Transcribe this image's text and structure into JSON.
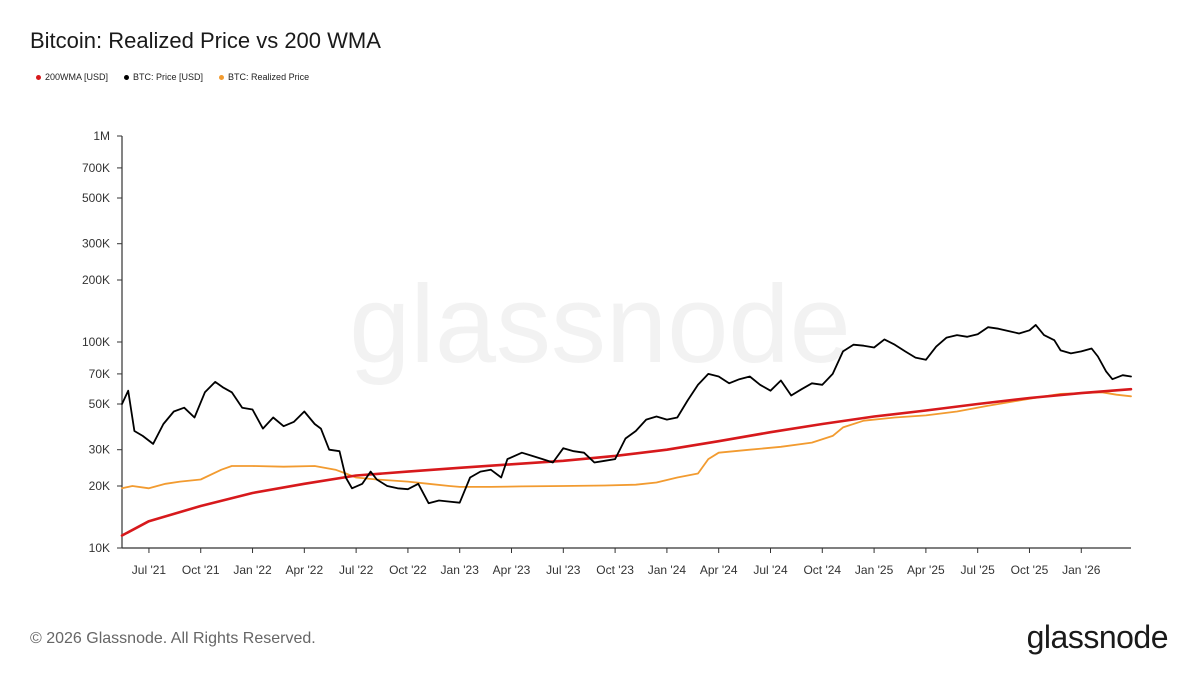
{
  "header": {
    "title": "Bitcoin: Realized Price vs 200 WMA"
  },
  "watermark": "glassnode",
  "footer": {
    "copyright": "© 2026 Glassnode. All Rights Reserved.",
    "brand": "glassnode"
  },
  "colors": {
    "wma": "#d7191c",
    "price": "#000000",
    "realized": "#f29b30",
    "axis": "#333333",
    "background": "#ffffff"
  },
  "chart_data": {
    "type": "line",
    "title": "Bitcoin: Realized Price vs 200 WMA",
    "xlabel": "",
    "ylabel": "",
    "y_scale": "log",
    "ylim": [
      10000,
      1000000
    ],
    "y_ticks": [
      {
        "value": 10000,
        "label": "10K"
      },
      {
        "value": 20000,
        "label": "20K"
      },
      {
        "value": 30000,
        "label": "30K"
      },
      {
        "value": 50000,
        "label": "50K"
      },
      {
        "value": 70000,
        "label": "70K"
      },
      {
        "value": 100000,
        "label": "100K"
      },
      {
        "value": 200000,
        "label": "200K"
      },
      {
        "value": 300000,
        "label": "300K"
      },
      {
        "value": 500000,
        "label": "500K"
      },
      {
        "value": 700000,
        "label": "700K"
      },
      {
        "value": 1000000,
        "label": "1M"
      }
    ],
    "xlim": [
      2021.37,
      2026.24
    ],
    "x_ticks": [
      {
        "value": 2021.5,
        "label": "Jul '21"
      },
      {
        "value": 2021.75,
        "label": "Oct '21"
      },
      {
        "value": 2022.0,
        "label": "Jan '22"
      },
      {
        "value": 2022.25,
        "label": "Apr '22"
      },
      {
        "value": 2022.5,
        "label": "Jul '22"
      },
      {
        "value": 2022.75,
        "label": "Oct '22"
      },
      {
        "value": 2023.0,
        "label": "Jan '23"
      },
      {
        "value": 2023.25,
        "label": "Apr '23"
      },
      {
        "value": 2023.5,
        "label": "Jul '23"
      },
      {
        "value": 2023.75,
        "label": "Oct '23"
      },
      {
        "value": 2024.0,
        "label": "Jan '24"
      },
      {
        "value": 2024.25,
        "label": "Apr '24"
      },
      {
        "value": 2024.5,
        "label": "Jul '24"
      },
      {
        "value": 2024.75,
        "label": "Oct '24"
      },
      {
        "value": 2025.0,
        "label": "Jan '25"
      },
      {
        "value": 2025.25,
        "label": "Apr '25"
      },
      {
        "value": 2025.5,
        "label": "Jul '25"
      },
      {
        "value": 2025.75,
        "label": "Oct '25"
      },
      {
        "value": 2026.0,
        "label": "Jan '26"
      }
    ],
    "series": [
      {
        "name": "200WMA [USD]",
        "color": "#d7191c",
        "points": [
          [
            2021.37,
            11500
          ],
          [
            2021.5,
            13500
          ],
          [
            2021.75,
            16000
          ],
          [
            2022.0,
            18500
          ],
          [
            2022.25,
            20500
          ],
          [
            2022.5,
            22500
          ],
          [
            2022.75,
            23500
          ],
          [
            2023.0,
            24500
          ],
          [
            2023.25,
            25500
          ],
          [
            2023.5,
            26500
          ],
          [
            2023.75,
            28000
          ],
          [
            2024.0,
            30000
          ],
          [
            2024.25,
            33000
          ],
          [
            2024.5,
            36500
          ],
          [
            2024.75,
            40000
          ],
          [
            2025.0,
            43500
          ],
          [
            2025.25,
            46500
          ],
          [
            2025.5,
            50000
          ],
          [
            2025.75,
            53500
          ],
          [
            2026.0,
            56500
          ],
          [
            2026.24,
            59000
          ]
        ]
      },
      {
        "name": "BTC: Price [USD]",
        "color": "#000000",
        "points": [
          [
            2021.37,
            50000
          ],
          [
            2021.4,
            58000
          ],
          [
            2021.43,
            37000
          ],
          [
            2021.47,
            35000
          ],
          [
            2021.52,
            32000
          ],
          [
            2021.57,
            40000
          ],
          [
            2021.62,
            46000
          ],
          [
            2021.67,
            48000
          ],
          [
            2021.72,
            43000
          ],
          [
            2021.77,
            57000
          ],
          [
            2021.82,
            64000
          ],
          [
            2021.86,
            60000
          ],
          [
            2021.9,
            57000
          ],
          [
            2021.95,
            48000
          ],
          [
            2022.0,
            47000
          ],
          [
            2022.05,
            38000
          ],
          [
            2022.1,
            43000
          ],
          [
            2022.15,
            39000
          ],
          [
            2022.2,
            41000
          ],
          [
            2022.25,
            46000
          ],
          [
            2022.3,
            40000
          ],
          [
            2022.33,
            38000
          ],
          [
            2022.37,
            30000
          ],
          [
            2022.42,
            29500
          ],
          [
            2022.45,
            22000
          ],
          [
            2022.48,
            19500
          ],
          [
            2022.53,
            20500
          ],
          [
            2022.57,
            23500
          ],
          [
            2022.6,
            21500
          ],
          [
            2022.65,
            20000
          ],
          [
            2022.7,
            19500
          ],
          [
            2022.75,
            19300
          ],
          [
            2022.8,
            20500
          ],
          [
            2022.85,
            16500
          ],
          [
            2022.9,
            17000
          ],
          [
            2022.95,
            16800
          ],
          [
            2023.0,
            16600
          ],
          [
            2023.05,
            22000
          ],
          [
            2023.1,
            23500
          ],
          [
            2023.15,
            24000
          ],
          [
            2023.2,
            22000
          ],
          [
            2023.23,
            27000
          ],
          [
            2023.3,
            29000
          ],
          [
            2023.35,
            28000
          ],
          [
            2023.4,
            27000
          ],
          [
            2023.45,
            26000
          ],
          [
            2023.5,
            30500
          ],
          [
            2023.55,
            29500
          ],
          [
            2023.6,
            29000
          ],
          [
            2023.65,
            26000
          ],
          [
            2023.7,
            26500
          ],
          [
            2023.75,
            27000
          ],
          [
            2023.8,
            34000
          ],
          [
            2023.85,
            37000
          ],
          [
            2023.9,
            42000
          ],
          [
            2023.95,
            43500
          ],
          [
            2024.0,
            42000
          ],
          [
            2024.05,
            43000
          ],
          [
            2024.1,
            52000
          ],
          [
            2024.15,
            62000
          ],
          [
            2024.2,
            70000
          ],
          [
            2024.25,
            68000
          ],
          [
            2024.3,
            63000
          ],
          [
            2024.35,
            66000
          ],
          [
            2024.4,
            68000
          ],
          [
            2024.45,
            62000
          ],
          [
            2024.5,
            58000
          ],
          [
            2024.55,
            65000
          ],
          [
            2024.6,
            55000
          ],
          [
            2024.65,
            59000
          ],
          [
            2024.7,
            63000
          ],
          [
            2024.75,
            62000
          ],
          [
            2024.8,
            70000
          ],
          [
            2024.85,
            90000
          ],
          [
            2024.9,
            97000
          ],
          [
            2024.95,
            96000
          ],
          [
            2025.0,
            94000
          ],
          [
            2025.05,
            103000
          ],
          [
            2025.1,
            97000
          ],
          [
            2025.15,
            90000
          ],
          [
            2025.2,
            84000
          ],
          [
            2025.25,
            82000
          ],
          [
            2025.3,
            95000
          ],
          [
            2025.35,
            105000
          ],
          [
            2025.4,
            108000
          ],
          [
            2025.45,
            106000
          ],
          [
            2025.5,
            109000
          ],
          [
            2025.55,
            118000
          ],
          [
            2025.6,
            116000
          ],
          [
            2025.65,
            113000
          ],
          [
            2025.7,
            110000
          ],
          [
            2025.75,
            114000
          ],
          [
            2025.78,
            121000
          ],
          [
            2025.82,
            108000
          ],
          [
            2025.87,
            102000
          ],
          [
            2025.9,
            91000
          ],
          [
            2025.95,
            88000
          ],
          [
            2026.0,
            90000
          ],
          [
            2026.05,
            93000
          ],
          [
            2026.08,
            85000
          ],
          [
            2026.12,
            72000
          ],
          [
            2026.15,
            66000
          ],
          [
            2026.2,
            69000
          ],
          [
            2026.24,
            68000
          ]
        ]
      },
      {
        "name": "BTC: Realized Price",
        "color": "#f29b30",
        "points": [
          [
            2021.37,
            19500
          ],
          [
            2021.42,
            20000
          ],
          [
            2021.5,
            19500
          ],
          [
            2021.58,
            20500
          ],
          [
            2021.65,
            21000
          ],
          [
            2021.75,
            21500
          ],
          [
            2021.85,
            24000
          ],
          [
            2021.9,
            25000
          ],
          [
            2022.0,
            25000
          ],
          [
            2022.15,
            24800
          ],
          [
            2022.3,
            25000
          ],
          [
            2022.4,
            24000
          ],
          [
            2022.45,
            23000
          ],
          [
            2022.5,
            22000
          ],
          [
            2022.6,
            21500
          ],
          [
            2022.75,
            21000
          ],
          [
            2022.85,
            20500
          ],
          [
            2022.95,
            20000
          ],
          [
            2023.0,
            19800
          ],
          [
            2023.15,
            19800
          ],
          [
            2023.3,
            19900
          ],
          [
            2023.5,
            20000
          ],
          [
            2023.7,
            20100
          ],
          [
            2023.85,
            20300
          ],
          [
            2023.95,
            20800
          ],
          [
            2024.05,
            22000
          ],
          [
            2024.15,
            23000
          ],
          [
            2024.2,
            27000
          ],
          [
            2024.25,
            29000
          ],
          [
            2024.4,
            30000
          ],
          [
            2024.55,
            31000
          ],
          [
            2024.7,
            32500
          ],
          [
            2024.8,
            35000
          ],
          [
            2024.85,
            38500
          ],
          [
            2024.95,
            41500
          ],
          [
            2025.1,
            43000
          ],
          [
            2025.25,
            44000
          ],
          [
            2025.4,
            46000
          ],
          [
            2025.55,
            49000
          ],
          [
            2025.7,
            52000
          ],
          [
            2025.8,
            54000
          ],
          [
            2025.9,
            56000
          ],
          [
            2026.0,
            56500
          ],
          [
            2026.1,
            57000
          ],
          [
            2026.17,
            55500
          ],
          [
            2026.24,
            54500
          ]
        ]
      }
    ]
  }
}
